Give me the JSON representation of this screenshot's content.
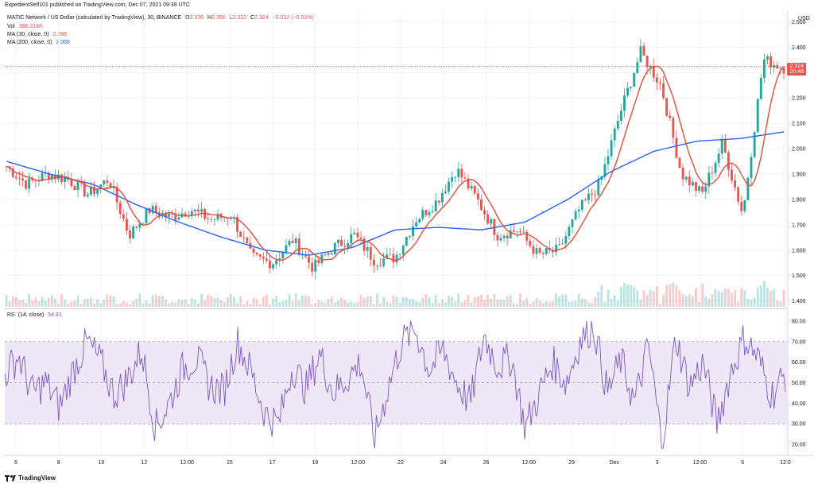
{
  "header": {
    "published": "ExpedientSelf101 published on TradingView.com, Dec 07, 2021 09:39 UTC"
  },
  "main_legend": {
    "symbol": "MATIC Network / US Dollar (calculated by TradingView), 30, BINANCE",
    "o_label": "O",
    "o": "2.336",
    "h_label": "H",
    "h": "2.350",
    "l_label": "L",
    "l": "2.322",
    "c_label": "C",
    "c": "2.324",
    "change": "−0.012 (−0.51%)",
    "vol_label": "Vol",
    "vol": "366.316K",
    "ma30_label": "MA (30, close, 0)",
    "ma30": "2.286",
    "ma200_label": "MA (200, close, 0)",
    "ma200": "2.066"
  },
  "rsi_legend": {
    "label": "RSI (14, close)",
    "value": "54.81"
  },
  "price_axis": {
    "currency": "USD",
    "last_price": "2.324",
    "countdown": "20:48",
    "ticks": [
      "2.500",
      "2.400",
      "2.300",
      "2.200",
      "2.100",
      "2.000",
      "1.900",
      "1.800",
      "1.700",
      "1.600",
      "1.500",
      "1.400"
    ]
  },
  "rsi_axis": {
    "ticks": [
      "80.00",
      "70.00",
      "60.00",
      "50.00",
      "40.00",
      "30.00",
      "20.00"
    ]
  },
  "time_axis": {
    "labels": [
      "6",
      "8",
      "10",
      "12",
      "12:00",
      "15",
      "17",
      "19",
      "12:00",
      "22",
      "24",
      "26",
      "12:00",
      "29",
      "Dec",
      "3",
      "12:00",
      "6",
      "12:0"
    ]
  },
  "brand": {
    "name": "TradingView"
  },
  "colors": {
    "up": "#26a69a",
    "down": "#ef5350",
    "ma30": "#e74c3c",
    "ma200": "#2962ff",
    "rsi": "#7e57c2",
    "rsi_band": "#ede7f6",
    "last_price": "#ef5350"
  },
  "chart_data": [
    {
      "type": "candlestick",
      "title": "MATIC Network / US Dollar (calculated by TradingView), 30, BINANCE",
      "ylabel": "USD",
      "ylim": [
        1.38,
        2.52
      ],
      "grid": true,
      "series": [
        {
          "name": "MA (30, close, 0)",
          "last": 2.286
        },
        {
          "name": "MA (200, close, 0)",
          "last": 2.066
        }
      ],
      "close_path": {
        "x": [
          "6",
          "7",
          "8",
          "9",
          "10",
          "10.5",
          "11",
          "12",
          "13",
          "14",
          "15",
          "16",
          "17",
          "17.5",
          "18",
          "19",
          "20",
          "21",
          "22",
          "23",
          "24",
          "25",
          "26",
          "26.5",
          "27",
          "28",
          "28.5",
          "29",
          "30",
          "Dec",
          "2",
          "3",
          "3.5",
          "4",
          "4.2",
          "5",
          "6",
          "6.5",
          "7"
        ],
        "y": [
          1.93,
          1.86,
          1.9,
          1.88,
          1.82,
          1.88,
          1.66,
          1.76,
          1.73,
          1.76,
          1.72,
          1.74,
          1.57,
          1.55,
          1.64,
          1.53,
          1.61,
          1.66,
          1.56,
          1.57,
          1.72,
          1.79,
          1.92,
          1.8,
          1.66,
          1.68,
          1.58,
          1.6,
          1.76,
          1.86,
          2.14,
          2.38,
          2.25,
          1.9,
          1.82,
          2.02,
          1.74,
          2.35,
          2.32
        ]
      },
      "ma200_path": {
        "x": [
          "6",
          "8",
          "10",
          "12",
          "15",
          "17",
          "19",
          "22",
          "24",
          "26",
          "28",
          "29",
          "Dec",
          "2",
          "3",
          "4",
          "5",
          "6",
          "7"
        ],
        "y": [
          1.95,
          1.9,
          1.86,
          1.78,
          1.71,
          1.65,
          1.6,
          1.58,
          1.61,
          1.68,
          1.69,
          1.68,
          1.71,
          1.8,
          1.91,
          1.99,
          2.03,
          2.04,
          2.066
        ]
      }
    },
    {
      "type": "line",
      "title": "RSI (14, close)",
      "ylim": [
        15,
        85
      ],
      "bands": [
        30,
        50,
        70
      ],
      "values": [
        54,
        63,
        45,
        50,
        38,
        56,
        70,
        60,
        44,
        52,
        66,
        28,
        40,
        57,
        62,
        48,
        46,
        70,
        55,
        35,
        30,
        58,
        47,
        64,
        45,
        52,
        60,
        22,
        48,
        70,
        76,
        56,
        66,
        50,
        40,
        73,
        58,
        62,
        28,
        44,
        60,
        50,
        70,
        78,
        45,
        61,
        40,
        68,
        20,
        72,
        48,
        60,
        30,
        55,
        72,
        62,
        44,
        54
      ]
    }
  ]
}
